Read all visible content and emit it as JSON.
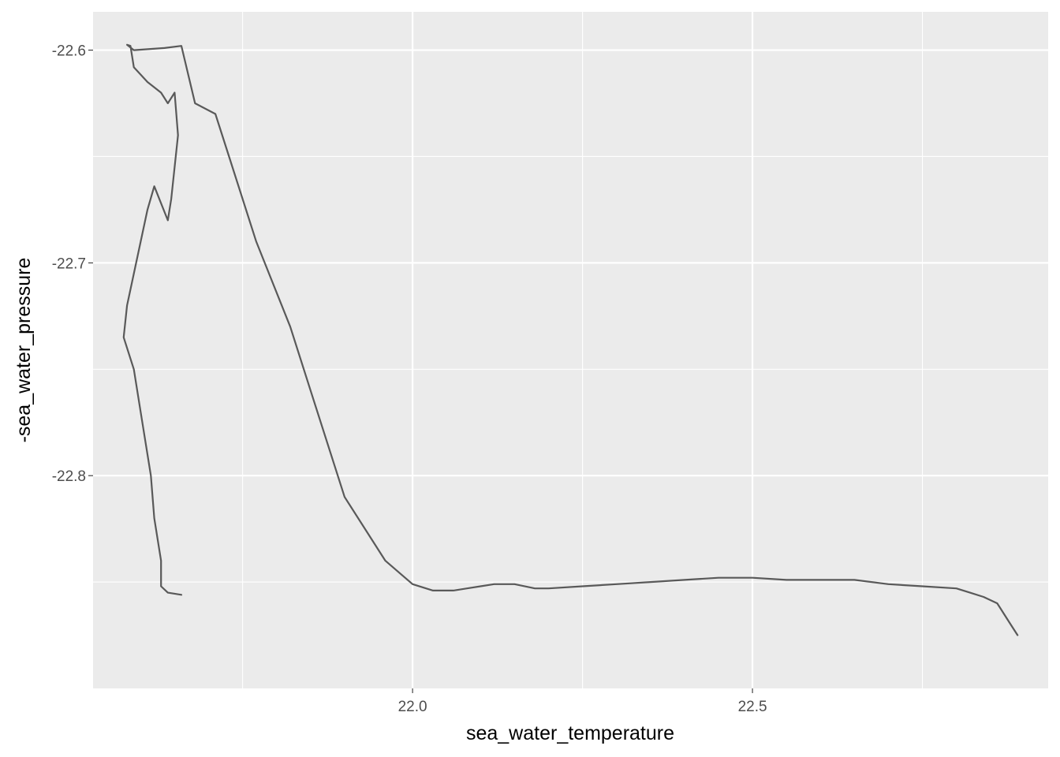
{
  "chart_data": {
    "type": "line",
    "title": "",
    "xlabel": "sea_water_temperature",
    "ylabel": "-sea_water_pressure",
    "xlim": [
      21.53,
      22.935
    ],
    "ylim": [
      -22.9,
      -22.582
    ],
    "x_ticks": [
      22.0,
      22.5
    ],
    "x_tick_labels": [
      "22.0",
      "22.5"
    ],
    "x_minor": [
      21.75,
      22.25,
      22.75
    ],
    "y_ticks": [
      -22.6,
      -22.7,
      -22.8
    ],
    "y_tick_labels": [
      "-22.6",
      "-22.7",
      "-22.8"
    ],
    "y_minor": [
      -22.65,
      -22.75,
      -22.85
    ],
    "grid": true,
    "legend": "none",
    "colors": {
      "panel": "#ebebeb",
      "grid": "#ffffff",
      "line": "#595959"
    },
    "series": [
      {
        "x": [
          21.66,
          21.64,
          21.63,
          21.63,
          21.62,
          21.615,
          21.6,
          21.59,
          21.585,
          21.575,
          21.58,
          21.61,
          21.62,
          21.64,
          21.645,
          21.655,
          21.65,
          21.64,
          21.63,
          21.61,
          21.59,
          21.585,
          21.58,
          21.59,
          21.635,
          21.66,
          21.68,
          21.71,
          21.73,
          21.77,
          21.82,
          21.85,
          21.9,
          21.96,
          22.0,
          22.03,
          22.06,
          22.08,
          22.1,
          22.12,
          22.15,
          22.18,
          22.2,
          22.25,
          22.3,
          22.35,
          22.4,
          22.45,
          22.48,
          22.5,
          22.55,
          22.6,
          22.65,
          22.7,
          22.75,
          22.8,
          22.82,
          22.84,
          22.86,
          22.87,
          22.88,
          22.89
        ],
        "y": [
          -22.856,
          -22.855,
          -22.852,
          -22.84,
          -22.82,
          -22.8,
          -22.77,
          -22.75,
          -22.745,
          -22.735,
          -22.72,
          -22.675,
          -22.664,
          -22.68,
          -22.67,
          -22.64,
          -22.62,
          -22.625,
          -22.62,
          -22.615,
          -22.608,
          -22.598,
          -22.5975,
          -22.6,
          -22.599,
          -22.598,
          -22.625,
          -22.63,
          -22.65,
          -22.69,
          -22.73,
          -22.76,
          -22.81,
          -22.84,
          -22.851,
          -22.854,
          -22.854,
          -22.853,
          -22.852,
          -22.851,
          -22.851,
          -22.853,
          -22.853,
          -22.852,
          -22.851,
          -22.85,
          -22.849,
          -22.848,
          -22.848,
          -22.848,
          -22.849,
          -22.849,
          -22.849,
          -22.851,
          -22.852,
          -22.853,
          -22.855,
          -22.857,
          -22.86,
          -22.865,
          -22.87,
          -22.875
        ]
      }
    ]
  }
}
